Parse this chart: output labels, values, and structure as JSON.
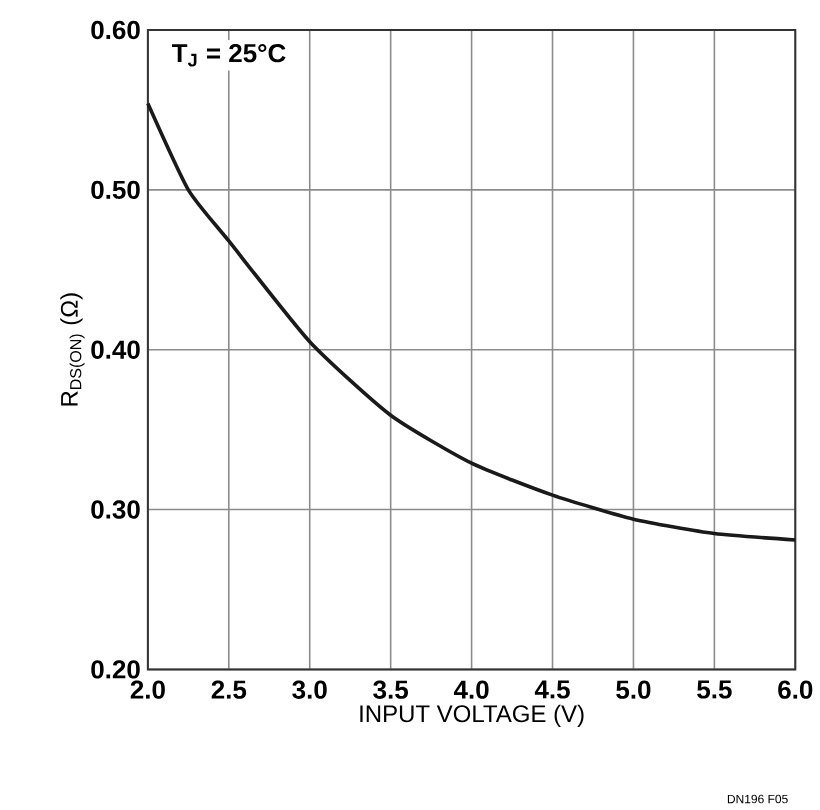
{
  "chart_data": {
    "type": "line",
    "xlabel": "INPUT VOLTAGE (V)",
    "ylabel": "R$_{DS(ON)}$ (Ω)",
    "annotations": [
      "T$_{J}$ = 25°C",
      "DN196 F05"
    ],
    "x": [
      2.0,
      2.25,
      2.5,
      3.0,
      3.5,
      4.0,
      4.5,
      5.0,
      5.5,
      6.0
    ],
    "series": [
      {
        "color": "#1a1a1a",
        "values": [
          0.554,
          0.5,
          0.468,
          0.405,
          0.359,
          0.329,
          0.309,
          0.294,
          0.285,
          0.281
        ]
      }
    ],
    "xlim": [
      2.0,
      6.0
    ],
    "xticks": [
      {
        "value": 2.0,
        "label": "2.0"
      },
      {
        "value": 2.5,
        "label": "2.5"
      },
      {
        "value": 3.0,
        "label": "3.0"
      },
      {
        "value": 3.5,
        "label": "3.5"
      },
      {
        "value": 4.0,
        "label": "4.0"
      },
      {
        "value": 4.5,
        "label": "4.5"
      },
      {
        "value": 5.0,
        "label": "5.0"
      },
      {
        "value": 5.5,
        "label": "5.5"
      },
      {
        "value": 6.0,
        "label": "6.0"
      }
    ],
    "ylim": [
      0.2,
      0.6
    ],
    "yticks": [
      {
        "value": 0.2,
        "label": "0.20"
      },
      {
        "value": 0.3,
        "label": "0.30"
      },
      {
        "value": 0.4,
        "label": "0.40"
      },
      {
        "value": 0.5,
        "label": "0.50"
      },
      {
        "value": 0.6,
        "label": "0.60"
      }
    ],
    "grid": true,
    "line_style": "solid"
  }
}
